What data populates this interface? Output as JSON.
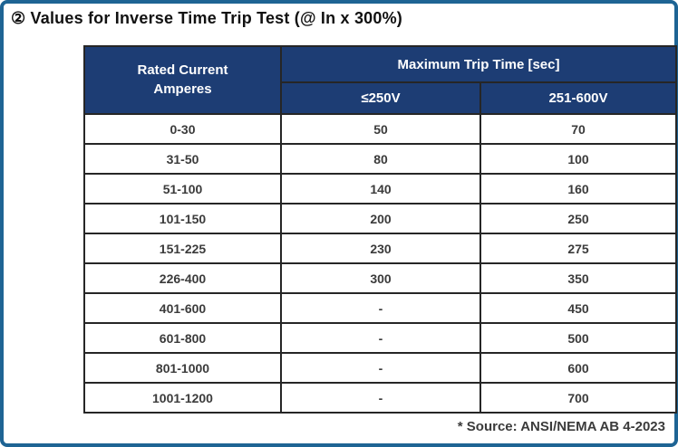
{
  "page": {
    "title": "② Values for Inverse Time Trip Test (@ In x 300%)",
    "source_note": "* Source: ANSI/NEMA AB 4-2023"
  },
  "colors": {
    "border_blue": "#1e6494",
    "header_bg": "#1d3d74",
    "header_text": "#ffffff",
    "grid": "#262626",
    "cell_text": "#3b3b3b",
    "title": "#111111"
  },
  "table": {
    "header": {
      "col1_lines": [
        "Rated Current",
        "Amperes"
      ],
      "group": "Maximum Trip Time [sec]",
      "sub1": "≤250V",
      "sub2": "251-600V"
    },
    "rows": [
      {
        "range": "0-30",
        "v250": "50",
        "v600": "70"
      },
      {
        "range": "31-50",
        "v250": "80",
        "v600": "100"
      },
      {
        "range": "51-100",
        "v250": "140",
        "v600": "160"
      },
      {
        "range": "101-150",
        "v250": "200",
        "v600": "250"
      },
      {
        "range": "151-225",
        "v250": "230",
        "v600": "275"
      },
      {
        "range": "226-400",
        "v250": "300",
        "v600": "350"
      },
      {
        "range": "401-600",
        "v250": "-",
        "v600": "450"
      },
      {
        "range": "601-800",
        "v250": "-",
        "v600": "500"
      },
      {
        "range": "801-1000",
        "v250": "-",
        "v600": "600"
      },
      {
        "range": "1001-1200",
        "v250": "-",
        "v600": "700"
      }
    ]
  }
}
